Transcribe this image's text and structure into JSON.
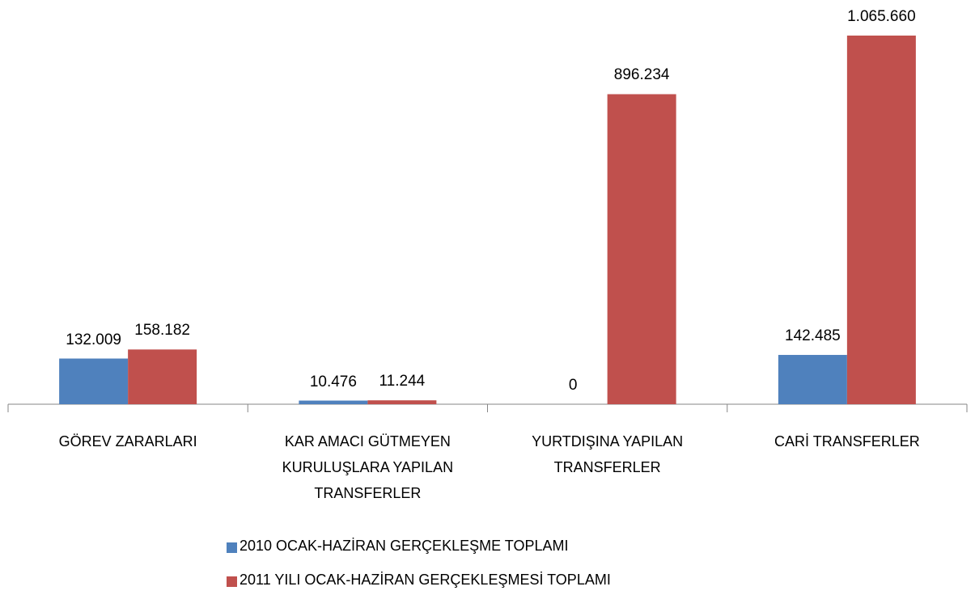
{
  "chart_data": {
    "type": "bar",
    "categories": [
      "GÖREV ZARARLARI",
      "KAR AMACI GÜTMEYEN KURULUŞLARA YAPILAN TRANSFERLER",
      "YURTDIŞINA YAPILAN TRANSFERLER",
      "CARİ TRANSFERLER"
    ],
    "series": [
      {
        "name": "2010 OCAK-HAZİRAN GERÇEKLEŞME TOPLAMI",
        "color": "#4f81bd",
        "values": [
          132009,
          10476,
          0,
          142485
        ],
        "value_labels": [
          "132.009",
          "10.476",
          "0",
          "142.485"
        ]
      },
      {
        "name": "2011 YILI OCAK-HAZİRAN GERÇEKLEŞMESİ TOPLAMI",
        "color": "#c0504d",
        "values": [
          158182,
          11244,
          896234,
          1065660
        ],
        "value_labels": [
          "158.182",
          "11.244",
          "896.234",
          "1.065.660"
        ]
      }
    ]
  }
}
